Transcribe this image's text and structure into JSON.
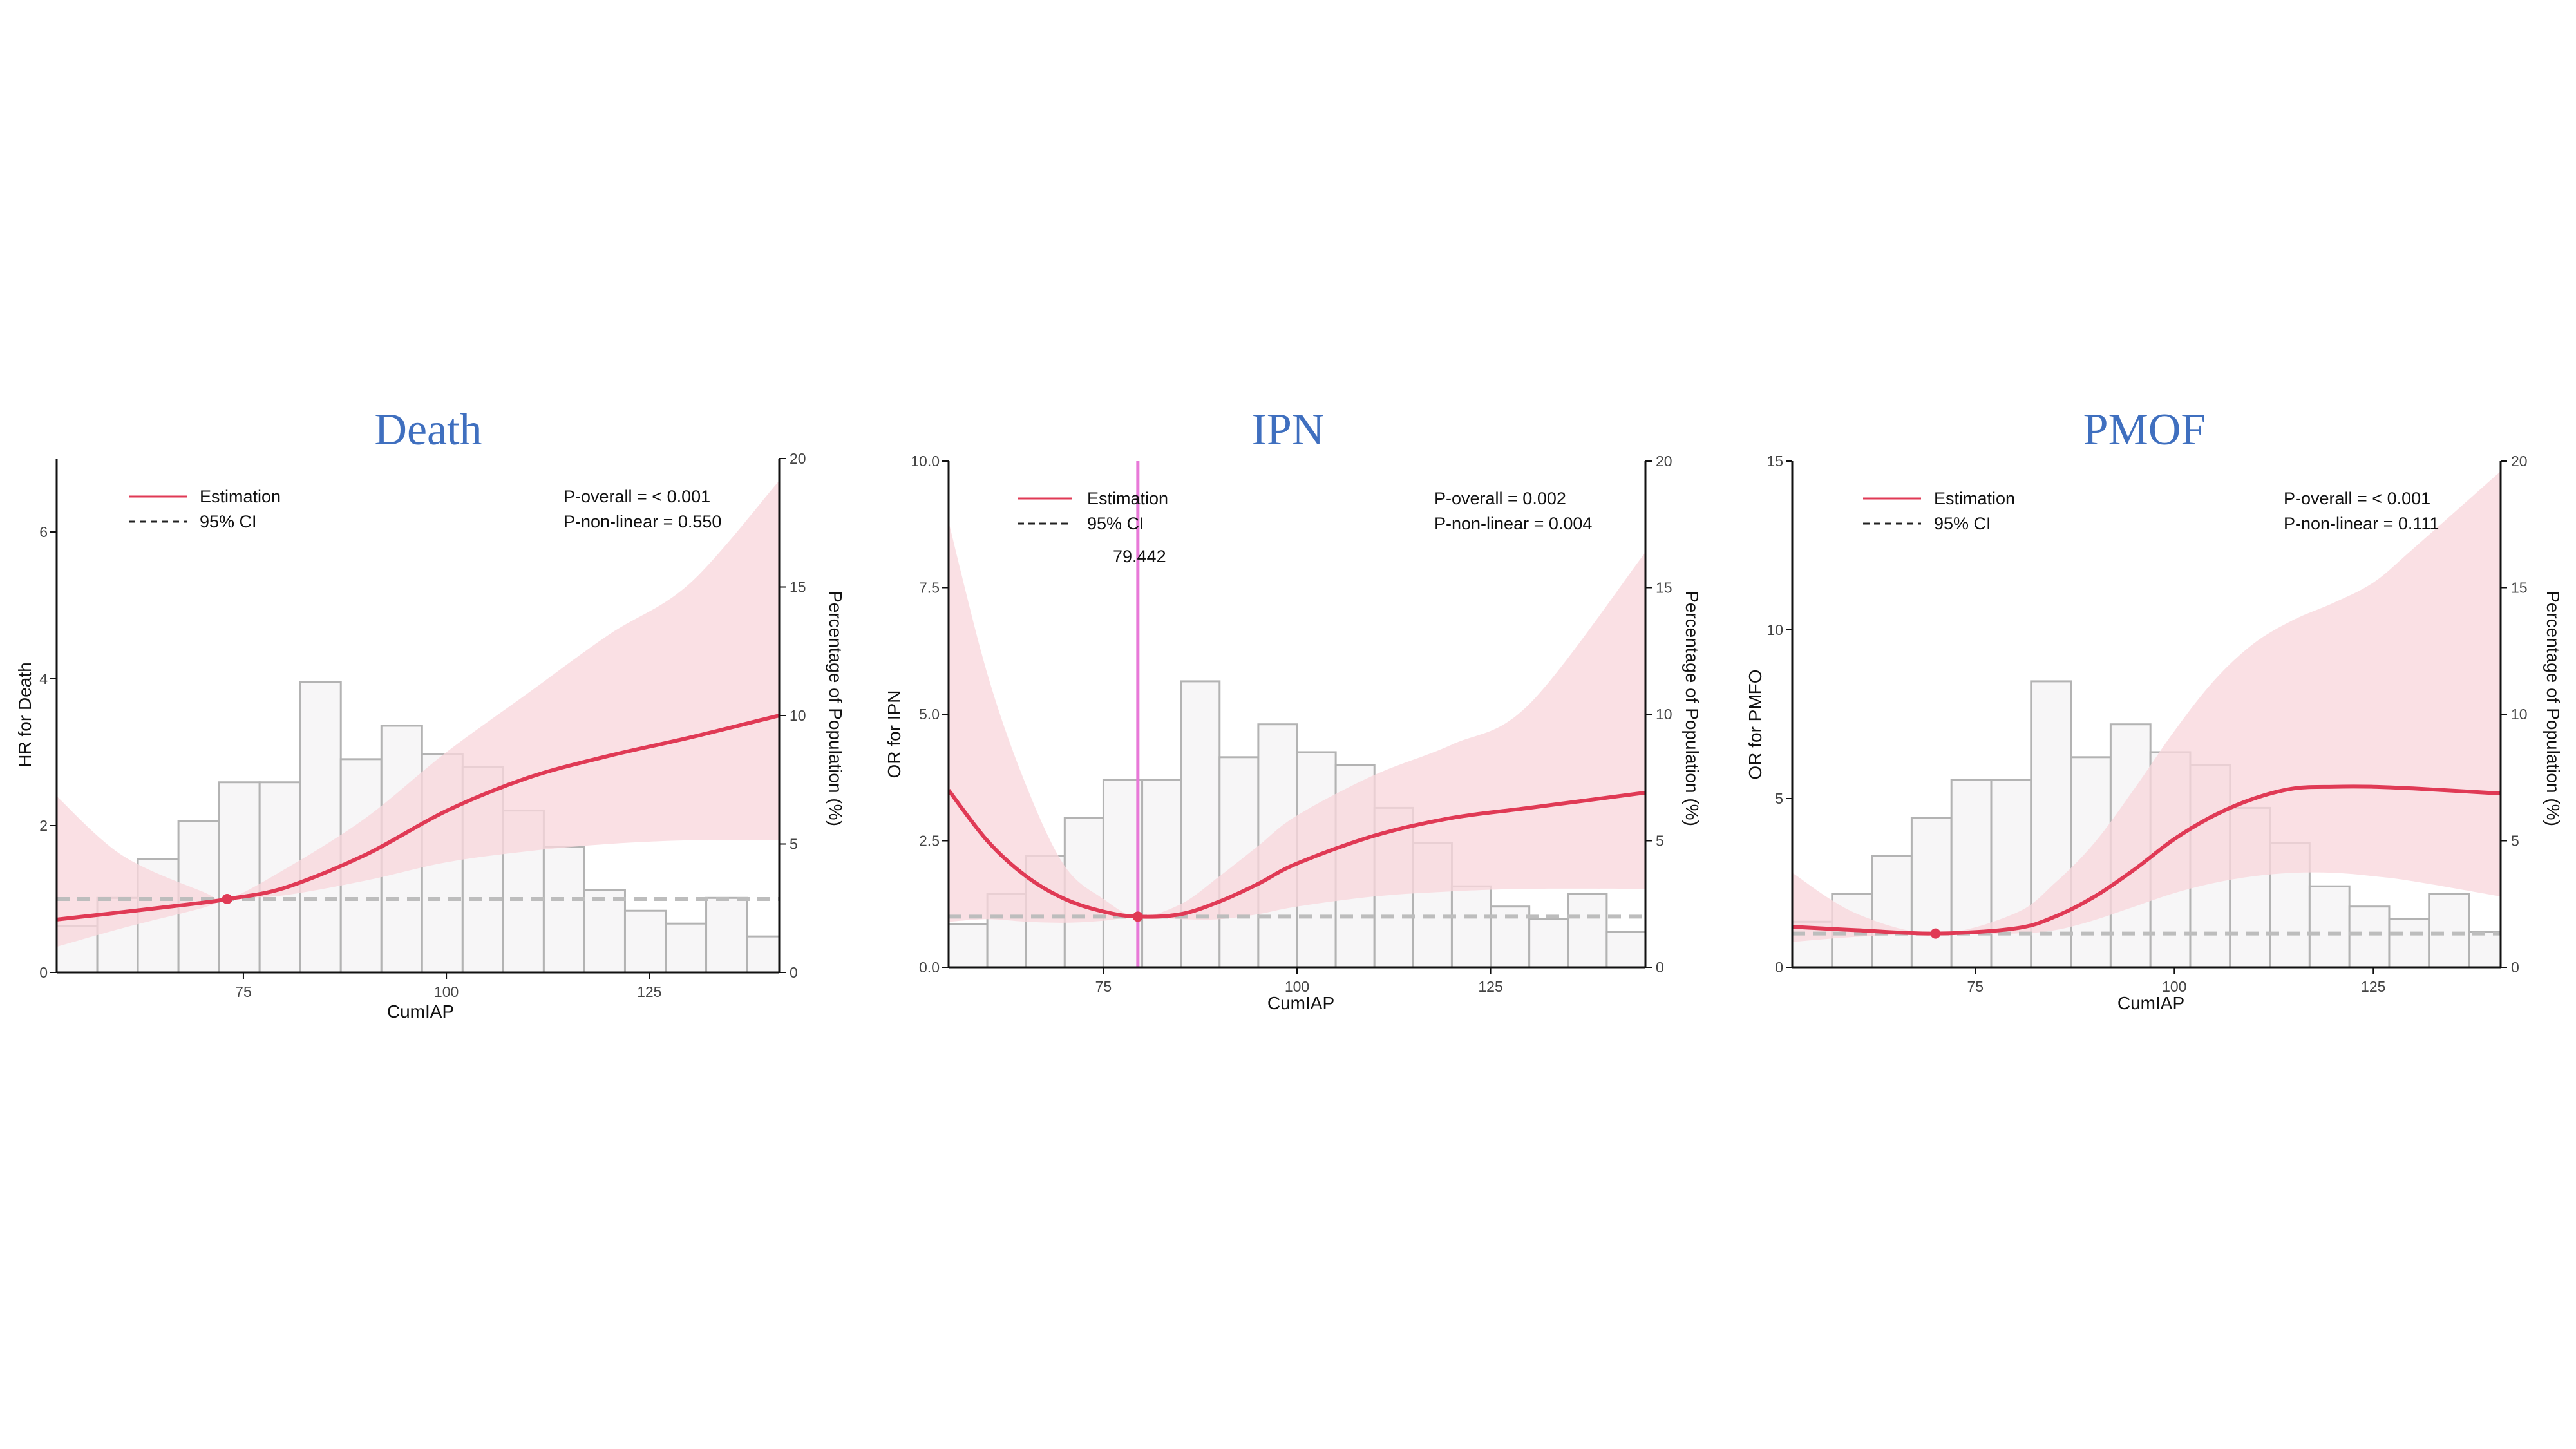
{
  "colors": {
    "estimate": "#e03a55",
    "ci_band": "#f8d7dd",
    "histogram_fill": "#f7f6f7",
    "histogram_stroke": "#b3b3b3",
    "reference_line": "#bdbdbd",
    "title": "#3f6fbf",
    "vline": "#e879d8"
  },
  "chart_data": [
    {
      "type": "line",
      "title": "Death",
      "xlabel": "CumIAP",
      "ylabel": "HR for Death",
      "y2label": "Percentage of Population (%)",
      "xlim": [
        52,
        141
      ],
      "ylim": [
        0,
        7
      ],
      "y2lim": [
        0,
        20
      ],
      "xticks": [
        75,
        100,
        125
      ],
      "yticks": [
        0,
        2,
        4,
        6
      ],
      "y2ticks": [
        0,
        5,
        10,
        15,
        20
      ],
      "legend": {
        "position": "top-left",
        "estimation": "Estimation",
        "ci": "95% CI"
      },
      "p_overall": "P-overall = < 0.001",
      "p_nonlinear": "P-non-linear = 0.550",
      "reference_value": 1,
      "reference_point": [
        73,
        1.0
      ],
      "series": [
        {
          "name": "Estimation",
          "x": [
            52,
            60,
            70,
            73,
            80,
            90,
            100,
            110,
            120,
            130,
            141
          ],
          "y": [
            0.72,
            0.82,
            0.95,
            1.0,
            1.15,
            1.6,
            2.2,
            2.65,
            2.95,
            3.2,
            3.5
          ]
        }
      ],
      "ci_lower": [
        0.35,
        0.6,
        0.88,
        1.0,
        1.05,
        1.25,
        1.5,
        1.65,
        1.75,
        1.8,
        1.8
      ],
      "ci_upper": [
        2.4,
        1.6,
        1.1,
        1.0,
        1.4,
        2.1,
        3.0,
        3.8,
        4.6,
        5.3,
        6.7
      ],
      "histogram": {
        "bin_edges": [
          52,
          57,
          62,
          67,
          72,
          77,
          82,
          87,
          92,
          97,
          102,
          107,
          112,
          117,
          122,
          127,
          132,
          137,
          142
        ],
        "percent": [
          1.8,
          2.9,
          4.4,
          5.9,
          7.4,
          7.4,
          11.3,
          8.3,
          9.6,
          8.5,
          8.0,
          6.3,
          4.9,
          3.2,
          2.4,
          1.9,
          2.9,
          1.4
        ]
      }
    },
    {
      "type": "line",
      "title": "IPN",
      "xlabel": "CumIAP",
      "ylabel": "OR for IPN",
      "y2label": "Percentage of Population (%)",
      "xlim": [
        55,
        145
      ],
      "ylim": [
        0,
        10
      ],
      "y2lim": [
        0,
        20
      ],
      "xticks": [
        75,
        100,
        125
      ],
      "yticks": [
        0.0,
        2.5,
        5.0,
        7.5,
        10.0
      ],
      "ytick_labels": [
        "0.0",
        "2.5",
        "5.0",
        "7.5",
        "10.0"
      ],
      "y2ticks": [
        0,
        5,
        10,
        15,
        20
      ],
      "legend": {
        "position": "top-left",
        "estimation": "Estimation",
        "ci": "95% CI"
      },
      "p_overall": "P-overall = 0.002",
      "p_nonlinear": "P-non-linear = 0.004",
      "reference_value": 1,
      "reference_point": [
        79.442,
        1.0
      ],
      "vline": {
        "x": 79.442,
        "label": "79.442"
      },
      "series": [
        {
          "name": "Estimation",
          "x": [
            55,
            60,
            65,
            70,
            75,
            79.442,
            85,
            90,
            95,
            100,
            110,
            120,
            130,
            145
          ],
          "y": [
            3.5,
            2.5,
            1.8,
            1.35,
            1.1,
            1.0,
            1.05,
            1.3,
            1.65,
            2.05,
            2.6,
            2.95,
            3.15,
            3.45
          ]
        }
      ],
      "ci_lower": [
        0.9,
        0.95,
        0.9,
        0.88,
        0.92,
        1.0,
        0.95,
        0.95,
        1.05,
        1.2,
        1.4,
        1.5,
        1.55,
        1.55
      ],
      "ci_upper": [
        8.8,
        5.8,
        3.6,
        2.0,
        1.35,
        1.0,
        1.25,
        1.8,
        2.4,
        3.0,
        3.8,
        4.4,
        5.2,
        8.2
      ],
      "histogram": {
        "bin_edges": [
          55,
          60,
          65,
          70,
          75,
          80,
          85,
          90,
          95,
          100,
          105,
          110,
          115,
          120,
          125,
          130,
          135,
          140,
          145
        ],
        "percent": [
          1.7,
          2.9,
          4.4,
          5.9,
          7.4,
          7.4,
          11.3,
          8.3,
          9.6,
          8.5,
          8.0,
          6.3,
          4.9,
          3.2,
          2.4,
          1.9,
          2.9,
          1.4
        ]
      }
    },
    {
      "type": "line",
      "title": "PMOF",
      "xlabel": "CumIAP",
      "ylabel": "OR for PMFO",
      "y2label": "Percentage of Population (%)",
      "xlim": [
        52,
        141
      ],
      "ylim": [
        0,
        15
      ],
      "y2lim": [
        0,
        20
      ],
      "xticks": [
        75,
        100,
        125
      ],
      "yticks": [
        0,
        5,
        10,
        15
      ],
      "y2ticks": [
        0,
        5,
        10,
        15,
        20
      ],
      "legend": {
        "position": "top-left",
        "estimation": "Estimation",
        "ci": "95% CI"
      },
      "p_overall": "P-overall = < 0.001",
      "p_nonlinear": "P-non-linear = 0.111",
      "reference_value": 1,
      "reference_point": [
        70,
        1.0
      ],
      "series": [
        {
          "name": "Estimation",
          "x": [
            52,
            60,
            70,
            80,
            85,
            90,
            95,
            100,
            105,
            110,
            115,
            120,
            125,
            130,
            141
          ],
          "y": [
            1.2,
            1.1,
            1.0,
            1.15,
            1.5,
            2.1,
            2.9,
            3.8,
            4.5,
            5.0,
            5.3,
            5.35,
            5.35,
            5.3,
            5.15
          ]
        }
      ],
      "ci_lower": [
        0.75,
        0.9,
        1.0,
        1.0,
        1.1,
        1.4,
        1.8,
        2.2,
        2.5,
        2.7,
        2.8,
        2.8,
        2.7,
        2.55,
        2.1
      ],
      "ci_upper": [
        2.8,
        1.6,
        1.0,
        1.6,
        2.5,
        3.7,
        5.3,
        7.0,
        8.5,
        9.6,
        10.3,
        10.8,
        11.4,
        12.4,
        14.7
      ],
      "histogram": {
        "bin_edges": [
          52,
          57,
          62,
          67,
          72,
          77,
          82,
          87,
          92,
          97,
          102,
          107,
          112,
          117,
          122,
          127,
          132,
          137,
          142
        ],
        "percent": [
          1.8,
          2.9,
          4.4,
          5.9,
          7.4,
          7.4,
          11.3,
          8.3,
          9.6,
          8.5,
          8.0,
          6.3,
          4.9,
          3.2,
          2.4,
          1.9,
          2.9,
          1.4
        ]
      }
    }
  ]
}
